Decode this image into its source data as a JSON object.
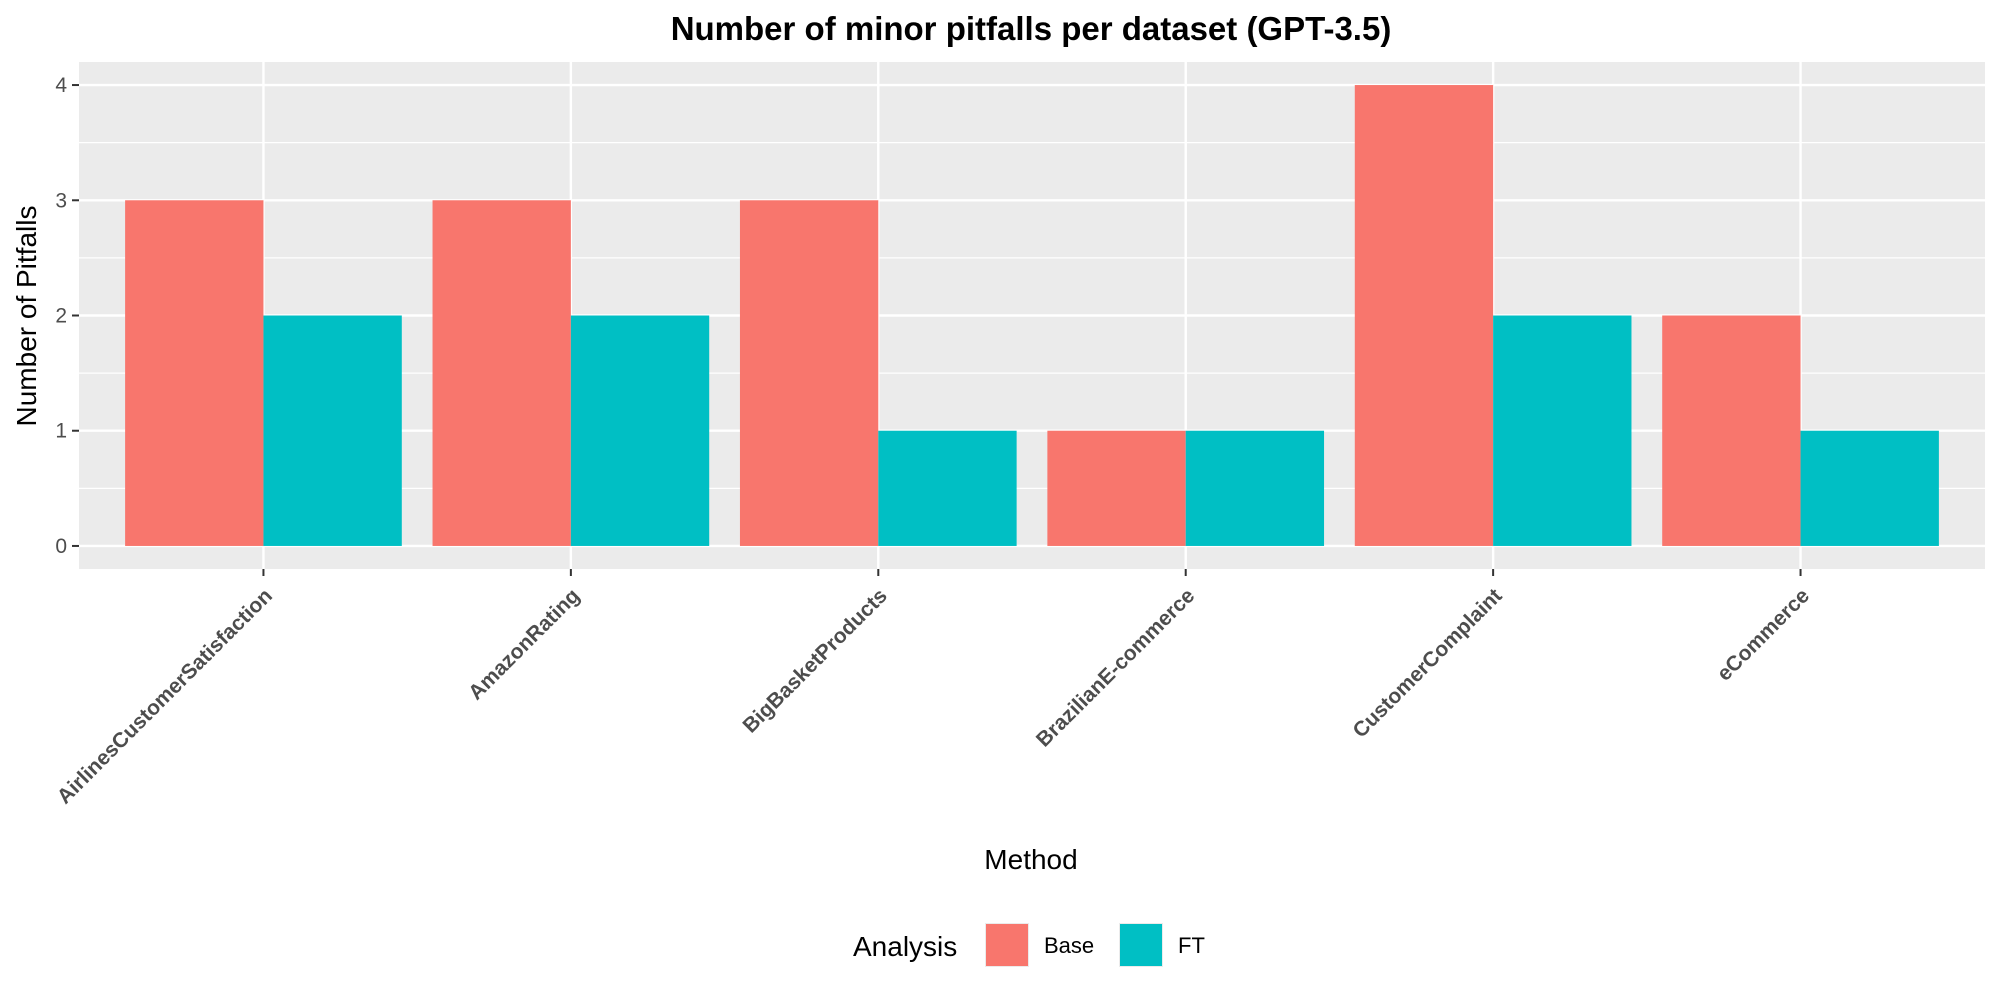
{
  "chart_data": {
    "type": "bar",
    "title": "Number of minor pitfalls per dataset (GPT-3.5)",
    "xlabel": "Method",
    "ylabel": "Number of Pitfalls",
    "categories": [
      "AirlinesCustomerSatisfaction",
      "AmazonRating",
      "BigBasketProducts",
      "BrazilianE-commerce",
      "CustomerComplaint",
      "eCommerce"
    ],
    "series": [
      {
        "name": "Base",
        "color": "#F8766D",
        "values": [
          3,
          3,
          3,
          1,
          4,
          2
        ]
      },
      {
        "name": "FT",
        "color": "#00BFC4",
        "values": [
          2,
          2,
          1,
          1,
          2,
          1
        ]
      }
    ],
    "ylim": [
      -0.2,
      4.2
    ],
    "yticks": [
      "0",
      "1",
      "2",
      "3",
      "4"
    ],
    "grid": true,
    "panel_color": "#EBEBEB",
    "legend": {
      "title": "Analysis",
      "placement": "bottom"
    }
  }
}
